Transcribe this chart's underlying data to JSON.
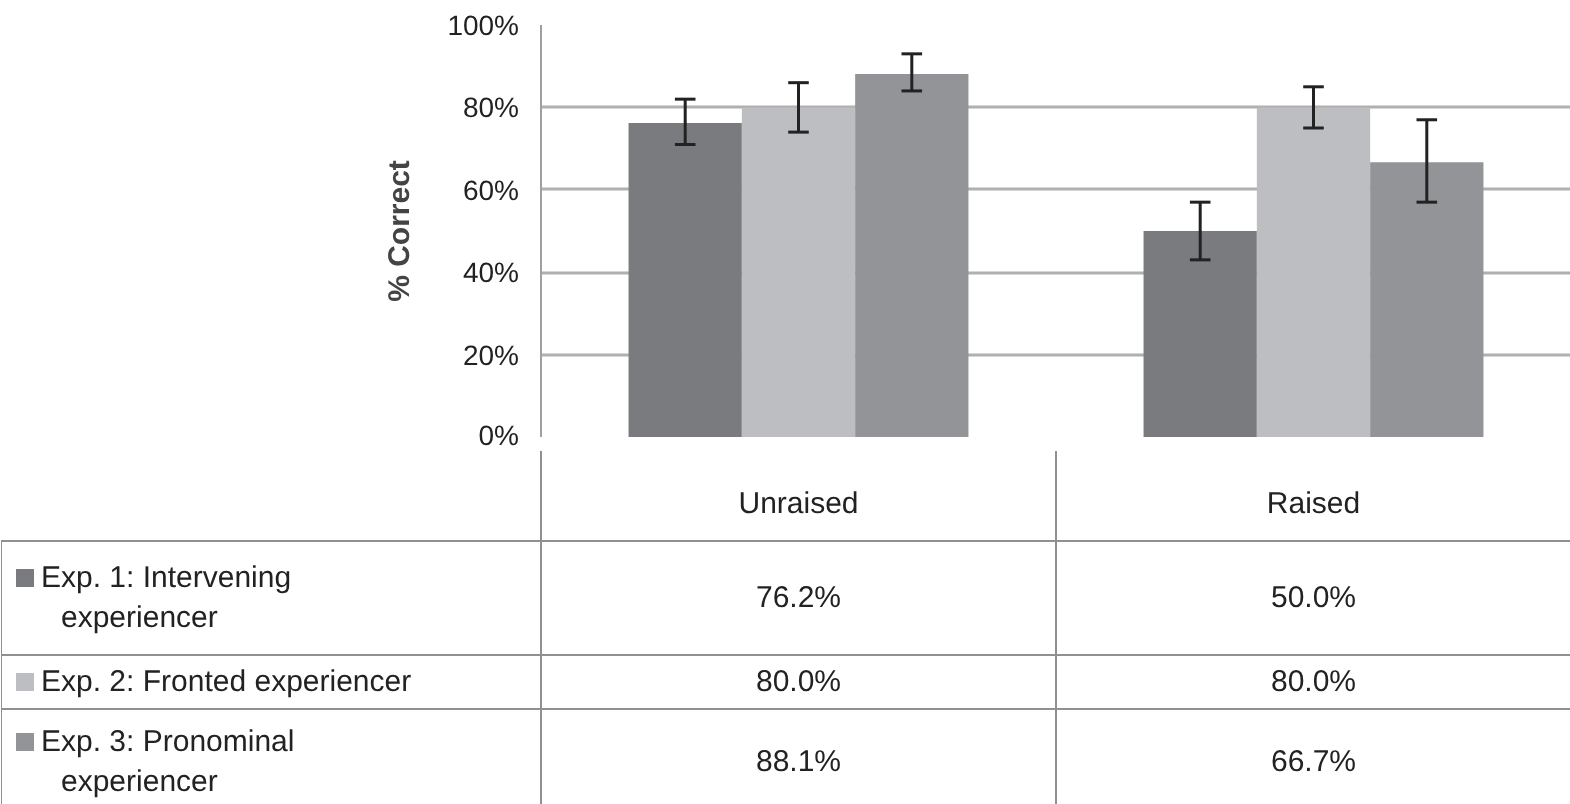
{
  "chart_data": {
    "type": "bar",
    "ylabel": "% Correct",
    "categories": [
      "Unraised",
      "Raised"
    ],
    "ylim": [
      0,
      100
    ],
    "yticks": [
      {
        "value": 0,
        "label": "0%"
      },
      {
        "value": 20,
        "label": "20%"
      },
      {
        "value": 40,
        "label": "40%"
      },
      {
        "value": 60,
        "label": "60%"
      },
      {
        "value": 80,
        "label": "80%"
      },
      {
        "value": 100,
        "label": "100%"
      }
    ],
    "grid": "y",
    "legend": "bottom left",
    "series": [
      {
        "name": "Exp. 1: Intervening experiencer",
        "color": "#7a7b7e",
        "values": [
          76.2,
          50.0
        ],
        "errors": [
          [
            71,
            82
          ],
          [
            43,
            57
          ]
        ],
        "value_labels": [
          "76.2%",
          "50.0%"
        ]
      },
      {
        "name": "Exp. 2: Fronted experiencer",
        "color": "#bdbec1",
        "values": [
          80.0,
          80.0
        ],
        "errors": [
          [
            74,
            86
          ],
          [
            75,
            85
          ]
        ],
        "value_labels": [
          "80.0%",
          "80.0%"
        ]
      },
      {
        "name": "Exp. 3: Pronominal experiencer",
        "color": "#939497",
        "values": [
          88.1,
          66.7
        ],
        "errors": [
          [
            84,
            93
          ],
          [
            57,
            77
          ]
        ],
        "value_labels": [
          "88.1%",
          "66.7%"
        ]
      }
    ]
  }
}
